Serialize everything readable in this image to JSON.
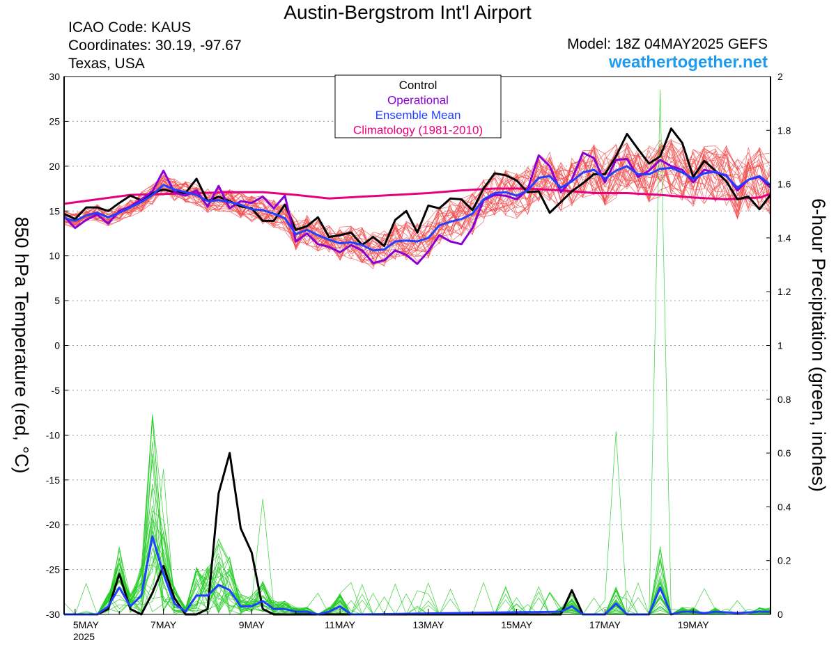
{
  "header": {
    "title": "Austin-Bergstrom Int'l Airport",
    "icao": "ICAO Code: KAUS",
    "coordinates": "Coordinates: 30.19, -97.67",
    "region": "Texas, USA",
    "model": "Model: 18Z 04MAY2025 GEFS",
    "website": "weathertogether.net",
    "website_color": "#1e9bf0"
  },
  "chart_data": {
    "type": "line",
    "title": "Austin-Bergstrom Int'l Airport",
    "ylabel_left": "850 hPa Temperature (red, °C)",
    "ylabel_right": "6-hour Precipitation (green, inches)",
    "x_ticks": [
      {
        "day": 5,
        "label": "5MAY",
        "sublabel": "2025"
      },
      {
        "day": 7,
        "label": "7MAY"
      },
      {
        "day": 9,
        "label": "9MAY"
      },
      {
        "day": 11,
        "label": "11MAY"
      },
      {
        "day": 13,
        "label": "13MAY"
      },
      {
        "day": 15,
        "label": "15MAY"
      },
      {
        "day": 17,
        "label": "17MAY"
      },
      {
        "day": 19,
        "label": "19MAY"
      }
    ],
    "x_range_days": [
      4.75,
      20.75
    ],
    "ylim_left": [
      -30,
      30
    ],
    "yticks_left": [
      30,
      25,
      20,
      15,
      10,
      5,
      0,
      -5,
      -10,
      -15,
      -20,
      -25,
      -30
    ],
    "ylim_right": [
      0,
      2
    ],
    "yticks_right": [
      "2",
      "1.8",
      "1.6",
      "1.4",
      "1.2",
      "1",
      "0.8",
      "0.6",
      "0.4",
      "0.2",
      "0"
    ],
    "grid": true,
    "legend": {
      "position": "top-center",
      "entries": [
        {
          "label": "Control",
          "color": "#000000"
        },
        {
          "label": "Operational",
          "color": "#8a00d4"
        },
        {
          "label": "Ensemble Mean",
          "color": "#2040ff"
        },
        {
          "label": "Climatology (1981-2010)",
          "color": "#e6007e"
        }
      ]
    },
    "colors": {
      "members_temp": "#f04848",
      "members_precip": "#22cc22"
    },
    "series_temperature_c": [
      {
        "name": "Control",
        "x": [
          4.75,
          5.0,
          5.25,
          5.5,
          5.75,
          6.0,
          6.25,
          6.5,
          6.75,
          7.0,
          7.25,
          7.5,
          7.75,
          8.0,
          8.25,
          8.5,
          8.75,
          9.0,
          9.25,
          9.5,
          9.75,
          10.0,
          10.25,
          10.5,
          10.75,
          11.0,
          11.25,
          11.5,
          11.75,
          12.0,
          12.25,
          12.5,
          12.75,
          13.0,
          13.25,
          13.5,
          13.75,
          14.0,
          14.25,
          14.5,
          14.75,
          15.0,
          15.25,
          15.5,
          15.75,
          16.0,
          16.25,
          16.5,
          16.75,
          17.0,
          17.25,
          17.5,
          17.75,
          18.0,
          18.25,
          18.5,
          18.75,
          19.0,
          19.25,
          19.5,
          19.75,
          20.0,
          20.25,
          20.5,
          20.75
        ],
        "values": [
          14.7,
          14.1,
          15.4,
          15.4,
          15.0,
          15.9,
          16.7,
          16.2,
          17.0,
          17.4,
          17.1,
          17.0,
          18.6,
          16.1,
          16.6,
          16.1,
          15.5,
          15.3,
          13.9,
          13.9,
          15.7,
          12.9,
          13.3,
          14.3,
          12.1,
          12.3,
          12.6,
          11.2,
          12.1,
          11.1,
          14.0,
          15.0,
          12.6,
          15.6,
          15.3,
          16.4,
          16.3,
          15.1,
          17.5,
          19.2,
          19.0,
          18.4,
          17.1,
          17.2,
          14.8,
          16.0,
          17.2,
          18.1,
          19.1,
          19.1,
          21.1,
          23.6,
          21.9,
          20.3,
          21.1,
          24.2,
          22.6,
          18.8,
          20.6,
          19.5,
          18.3,
          16.3,
          16.6,
          15.2,
          16.8
        ]
      },
      {
        "name": "Operational",
        "x": [
          4.75,
          5.0,
          5.25,
          5.5,
          5.75,
          6.0,
          6.25,
          6.5,
          6.75,
          7.0,
          7.25,
          7.5,
          7.75,
          8.0,
          8.25,
          8.5,
          8.75,
          9.0,
          9.25,
          9.5,
          9.75,
          10.0,
          10.25,
          10.5,
          10.75,
          11.0,
          11.25,
          11.5,
          11.75,
          12.0,
          12.25,
          12.5,
          12.75,
          13.0,
          13.25,
          13.5,
          13.75,
          14.0,
          14.25,
          14.5,
          14.75,
          15.0,
          15.25,
          15.5,
          15.75,
          16.0,
          16.25,
          16.5,
          16.75,
          17.0,
          17.25,
          17.5,
          17.75,
          18.0,
          18.25,
          18.5,
          18.75,
          19.0,
          19.25,
          19.5,
          19.75,
          20.0,
          20.25,
          20.5,
          20.75
        ],
        "values": [
          14.4,
          13.1,
          14.0,
          14.6,
          13.6,
          15.0,
          15.5,
          16.3,
          17.2,
          19.5,
          17.1,
          16.7,
          17.3,
          15.5,
          17.8,
          15.3,
          16.1,
          15.9,
          16.6,
          15.3,
          16.7,
          11.6,
          12.5,
          11.3,
          11.0,
          10.4,
          11.2,
          10.6,
          9.2,
          9.5,
          10.6,
          10.1,
          9.1,
          10.5,
          12.3,
          11.6,
          11.3,
          13.1,
          16.2,
          16.8,
          16.7,
          16.3,
          17.4,
          21.2,
          20.0,
          17.1,
          18.5,
          21.5,
          20.9,
          18.2,
          20.7,
          20.8,
          18.8,
          19.5,
          20.7,
          20.0,
          19.6,
          18.2,
          19.6,
          19.3,
          19.0,
          17.3,
          18.5,
          18.8,
          17.6
        ]
      },
      {
        "name": "Ensemble Mean",
        "x": [
          4.75,
          5.0,
          5.25,
          5.5,
          5.75,
          6.0,
          6.25,
          6.5,
          6.75,
          7.0,
          7.25,
          7.5,
          7.75,
          8.0,
          8.25,
          8.5,
          8.75,
          9.0,
          9.25,
          9.5,
          9.75,
          10.0,
          10.25,
          10.5,
          10.75,
          11.0,
          11.25,
          11.5,
          11.75,
          12.0,
          12.25,
          12.5,
          12.75,
          13.0,
          13.25,
          13.5,
          13.75,
          14.0,
          14.25,
          14.5,
          14.75,
          15.0,
          15.25,
          15.5,
          15.75,
          16.0,
          16.25,
          16.5,
          16.75,
          17.0,
          17.25,
          17.5,
          17.75,
          18.0,
          18.25,
          18.5,
          18.75,
          19.0,
          19.25,
          19.5,
          19.75,
          20.0,
          20.25,
          20.5,
          20.75
        ],
        "values": [
          14.2,
          13.9,
          14.5,
          14.8,
          14.3,
          14.8,
          15.4,
          16.0,
          16.8,
          17.9,
          17.4,
          17.1,
          16.8,
          16.1,
          16.2,
          16.0,
          15.7,
          15.2,
          15.1,
          14.7,
          14.2,
          12.4,
          12.9,
          12.3,
          11.8,
          11.4,
          11.5,
          11.2,
          10.6,
          10.7,
          11.6,
          11.7,
          11.6,
          12.0,
          13.4,
          13.8,
          14.1,
          14.7,
          16.3,
          17.0,
          17.1,
          16.7,
          17.3,
          18.7,
          18.9,
          17.6,
          18.3,
          19.3,
          19.6,
          18.6,
          19.5,
          20.0,
          19.1,
          19.1,
          19.7,
          19.8,
          19.3,
          18.6,
          19.2,
          19.4,
          18.9,
          17.6,
          18.5,
          18.9,
          17.9
        ]
      },
      {
        "name": "Climatology (1981-2010)",
        "x": [
          4.75,
          5.5,
          6.25,
          7.0,
          7.75,
          8.5,
          9.25,
          10.0,
          10.75,
          11.5,
          12.25,
          13.0,
          13.75,
          14.5,
          15.25,
          16.0,
          16.75,
          17.5,
          18.25,
          19.0,
          19.75,
          20.5,
          20.75
        ],
        "values": [
          15.8,
          16.3,
          16.8,
          16.9,
          17.0,
          17.1,
          17.1,
          16.8,
          16.4,
          16.6,
          16.8,
          17.0,
          17.3,
          17.5,
          17.5,
          17.3,
          17.0,
          17.0,
          16.8,
          16.5,
          16.3,
          16.5,
          16.9
        ]
      }
    ],
    "series_precip_in": [
      {
        "name": "Control",
        "x": [
          4.75,
          5.0,
          5.25,
          5.5,
          5.75,
          6.0,
          6.25,
          6.5,
          6.75,
          7.0,
          7.25,
          7.5,
          7.75,
          8.0,
          8.25,
          8.5,
          8.75,
          9.0,
          9.25,
          9.5,
          16.0,
          16.25,
          16.5
        ],
        "values": [
          0,
          0,
          0,
          0,
          0.02,
          0.15,
          0.02,
          0,
          0.08,
          0.18,
          0.06,
          0,
          0,
          0.02,
          0.45,
          0.6,
          0.32,
          0.23,
          0.02,
          0,
          0,
          0.09,
          0
        ]
      },
      {
        "name": "Ensemble Mean",
        "x": [
          4.75,
          5.0,
          5.25,
          5.5,
          5.75,
          6.0,
          6.25,
          6.5,
          6.75,
          7.0,
          7.25,
          7.5,
          7.75,
          8.0,
          8.25,
          8.5,
          8.75,
          9.0,
          9.25,
          9.5,
          9.75,
          10.0,
          10.25,
          10.5,
          10.75,
          11.0,
          11.25,
          11.5,
          16.0,
          16.25,
          16.5,
          16.75,
          17.0,
          17.25,
          17.5,
          17.75,
          18.0,
          18.25,
          18.5,
          18.75,
          19.0,
          19.25,
          19.5,
          20.0,
          20.5,
          20.75
        ],
        "values": [
          0,
          0,
          0,
          0,
          0.03,
          0.1,
          0.03,
          0.07,
          0.29,
          0.15,
          0.04,
          0.01,
          0.07,
          0.07,
          0.11,
          0.09,
          0.03,
          0.03,
          0.05,
          0.02,
          0.02,
          0.01,
          0.01,
          0,
          0.01,
          0.03,
          0,
          0,
          0.01,
          0.03,
          0,
          0,
          0,
          0.04,
          0,
          0,
          0,
          0.1,
          0,
          0.01,
          0.01,
          0.005,
          0.01,
          0.005,
          0.01,
          0.01
        ]
      }
    ]
  }
}
